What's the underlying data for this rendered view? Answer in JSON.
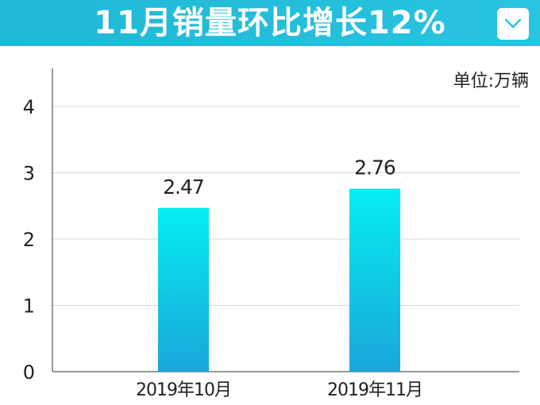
{
  "header": {
    "title": "11月销量环比增长12%",
    "accent_color": "#1fb8d6",
    "collapse_icon": "chevron-down-icon"
  },
  "chart_data": {
    "type": "bar",
    "unit_label": "单位:万辆",
    "categories": [
      "2019年10月",
      "2019年11月"
    ],
    "values": [
      2.47,
      2.76
    ],
    "data_labels": [
      "2.47",
      "2.76"
    ],
    "yticks": [
      0,
      1,
      2,
      3,
      4
    ],
    "ylim": [
      0,
      4.5
    ],
    "grid": true,
    "bar_gradient": [
      "#05eef2",
      "#1aa6da"
    ]
  }
}
